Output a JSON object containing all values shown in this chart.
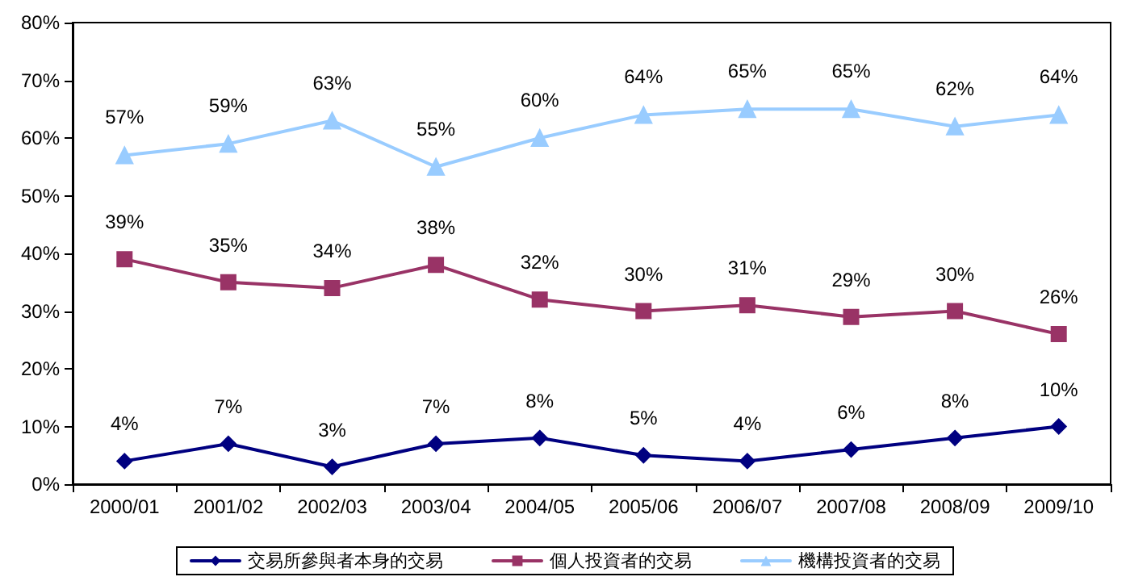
{
  "chart_data": {
    "type": "line",
    "categories": [
      "2000/01",
      "2001/02",
      "2002/03",
      "2003/04",
      "2004/05",
      "2005/06",
      "2006/07",
      "2007/08",
      "2008/09",
      "2009/10"
    ],
    "series": [
      {
        "name": "交易所參與者本身的交易",
        "color": "#000080",
        "marker": "diamond",
        "values": [
          4,
          7,
          3,
          7,
          8,
          5,
          4,
          6,
          8,
          10
        ],
        "value_labels": [
          "4%",
          "7%",
          "3%",
          "7%",
          "8%",
          "5%",
          "4%",
          "6%",
          "8%",
          "10%"
        ]
      },
      {
        "name": "個人投資者的交易",
        "color": "#993366",
        "marker": "square",
        "values": [
          39,
          35,
          34,
          38,
          32,
          30,
          31,
          29,
          30,
          26
        ],
        "value_labels": [
          "39%",
          "35%",
          "34%",
          "38%",
          "32%",
          "30%",
          "31%",
          "29%",
          "30%",
          "26%"
        ]
      },
      {
        "name": "機構投資者的交易",
        "color": "#99ccff",
        "marker": "triangle",
        "values": [
          57,
          59,
          63,
          55,
          60,
          64,
          65,
          65,
          62,
          64
        ],
        "value_labels": [
          "57%",
          "59%",
          "63%",
          "55%",
          "60%",
          "64%",
          "65%",
          "65%",
          "62%",
          "64%"
        ]
      }
    ],
    "ylim": [
      0,
      80
    ],
    "yticks": [
      {
        "value": 0,
        "label": "0%"
      },
      {
        "value": 10,
        "label": "10%"
      },
      {
        "value": 20,
        "label": "20%"
      },
      {
        "value": 30,
        "label": "30%"
      },
      {
        "value": 40,
        "label": "40%"
      },
      {
        "value": 50,
        "label": "50%"
      },
      {
        "value": 60,
        "label": "60%"
      },
      {
        "value": 70,
        "label": "70%"
      },
      {
        "value": 80,
        "label": "80%"
      }
    ],
    "grid": false,
    "legend": "bottom",
    "line_style": "solid"
  }
}
